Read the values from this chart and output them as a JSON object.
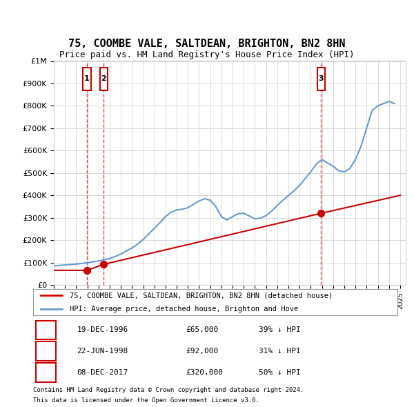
{
  "title": "75, COOMBE VALE, SALTDEAN, BRIGHTON, BN2 8HN",
  "subtitle": "Price paid vs. HM Land Registry's House Price Index (HPI)",
  "legend_line1": "75, COOMBE VALE, SALTDEAN, BRIGHTON, BN2 8HN (detached house)",
  "legend_line2": "HPI: Average price, detached house, Brighton and Hove",
  "footnote1": "Contains HM Land Registry data © Crown copyright and database right 2024.",
  "footnote2": "This data is licensed under the Open Government Licence v3.0.",
  "purchases": [
    {
      "num": 1,
      "date": "19-DEC-1996",
      "price": 65000,
      "hpi_pct": "39%",
      "direction": "↓"
    },
    {
      "num": 2,
      "date": "22-JUN-1998",
      "price": 92000,
      "hpi_pct": "31%",
      "direction": "↓"
    },
    {
      "num": 3,
      "date": "08-DEC-2017",
      "price": 320000,
      "hpi_pct": "50%",
      "direction": "↓"
    }
  ],
  "purchase_years": [
    1996.96,
    1998.47,
    2017.93
  ],
  "purchase_prices": [
    65000,
    92000,
    320000
  ],
  "red_line_color": "#cc0000",
  "blue_line_color": "#6699cc",
  "hatch_color": "#dddddd",
  "grid_color": "#cccccc",
  "ylim": [
    0,
    1000000
  ],
  "xlim_start": 1994.0,
  "xlim_end": 2025.5,
  "hatch_end": 1994.8,
  "background_color": "#ffffff",
  "hpi_x": [
    1994.0,
    1994.5,
    1995.0,
    1995.5,
    1996.0,
    1996.5,
    1997.0,
    1997.5,
    1998.0,
    1998.5,
    1999.0,
    1999.5,
    2000.0,
    2000.5,
    2001.0,
    2001.5,
    2002.0,
    2002.5,
    2003.0,
    2003.5,
    2004.0,
    2004.5,
    2005.0,
    2005.5,
    2006.0,
    2006.5,
    2007.0,
    2007.5,
    2008.0,
    2008.5,
    2009.0,
    2009.5,
    2010.0,
    2010.5,
    2011.0,
    2011.5,
    2012.0,
    2012.5,
    2013.0,
    2013.5,
    2014.0,
    2014.5,
    2015.0,
    2015.5,
    2016.0,
    2016.5,
    2017.0,
    2017.5,
    2018.0,
    2018.5,
    2019.0,
    2019.5,
    2020.0,
    2020.5,
    2021.0,
    2021.5,
    2022.0,
    2022.5,
    2023.0,
    2023.5,
    2024.0,
    2024.5
  ],
  "hpi_y": [
    85000,
    87000,
    89000,
    91000,
    93000,
    96000,
    99000,
    103000,
    107000,
    112000,
    118000,
    127000,
    138000,
    152000,
    165000,
    182000,
    203000,
    228000,
    253000,
    278000,
    305000,
    325000,
    335000,
    338000,
    345000,
    360000,
    375000,
    385000,
    378000,
    350000,
    305000,
    290000,
    305000,
    318000,
    320000,
    308000,
    295000,
    298000,
    310000,
    330000,
    355000,
    378000,
    400000,
    420000,
    445000,
    475000,
    505000,
    540000,
    560000,
    545000,
    530000,
    510000,
    505000,
    520000,
    560000,
    620000,
    700000,
    780000,
    800000,
    810000,
    820000,
    810000
  ],
  "red_x": [
    1994.0,
    1996.96,
    1998.47,
    2017.93,
    2025.0
  ],
  "red_y": [
    65000,
    65000,
    92000,
    320000,
    400000
  ],
  "xticks": [
    1994,
    1995,
    1996,
    1997,
    1998,
    1999,
    2000,
    2001,
    2002,
    2003,
    2004,
    2005,
    2006,
    2007,
    2008,
    2009,
    2010,
    2011,
    2012,
    2013,
    2014,
    2015,
    2016,
    2017,
    2018,
    2019,
    2020,
    2021,
    2022,
    2023,
    2024,
    2025
  ]
}
